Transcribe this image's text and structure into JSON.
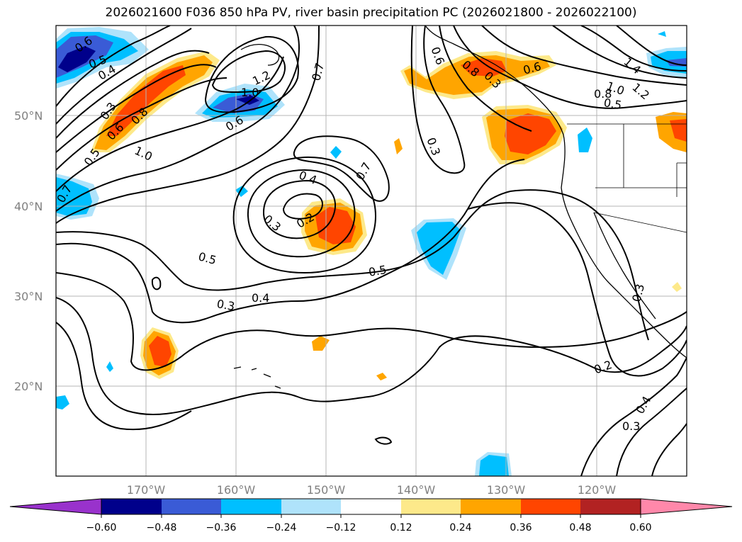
{
  "title": "2026021600 F036 850 hPa PV, river basin precipitation PC (2026021800 - 2026022100)",
  "map": {
    "lon_labels": [
      "170°W",
      "160°W",
      "150°W",
      "140°W",
      "130°W",
      "120°W"
    ],
    "lat_labels": [
      "50°N",
      "40°N",
      "30°N",
      "20°N"
    ]
  },
  "contour_labels": [
    "0.6",
    "0.5",
    "0.4",
    "0.3",
    "0.5",
    "0.6",
    "0.8",
    "1.0",
    "0.7",
    "1.2",
    "1.0",
    "0.6",
    "0.7",
    "0.4",
    "0.2",
    "0.3",
    "0.7",
    "0.5",
    "0.5",
    "0.4",
    "0.3",
    "0.3",
    "0.6",
    "0.8",
    "0.6",
    "0.3",
    "1.4",
    "1.2",
    "1.0",
    "0.8",
    "0.5",
    "0.2",
    "0.4",
    "0.3",
    "0.3"
  ],
  "colorbar": {
    "labels": [
      "−0.60",
      "−0.48",
      "−0.36",
      "−0.24",
      "−0.12",
      "0.12",
      "0.24",
      "0.36",
      "0.48",
      "0.60"
    ],
    "colors": [
      "#9932cc",
      "#00008b",
      "#3a5bd6",
      "#00bfff",
      "#afe3fb",
      "#ffffff",
      "#fde98a",
      "#ffa500",
      "#ff4500",
      "#b22222",
      "#ff88aa"
    ]
  }
}
